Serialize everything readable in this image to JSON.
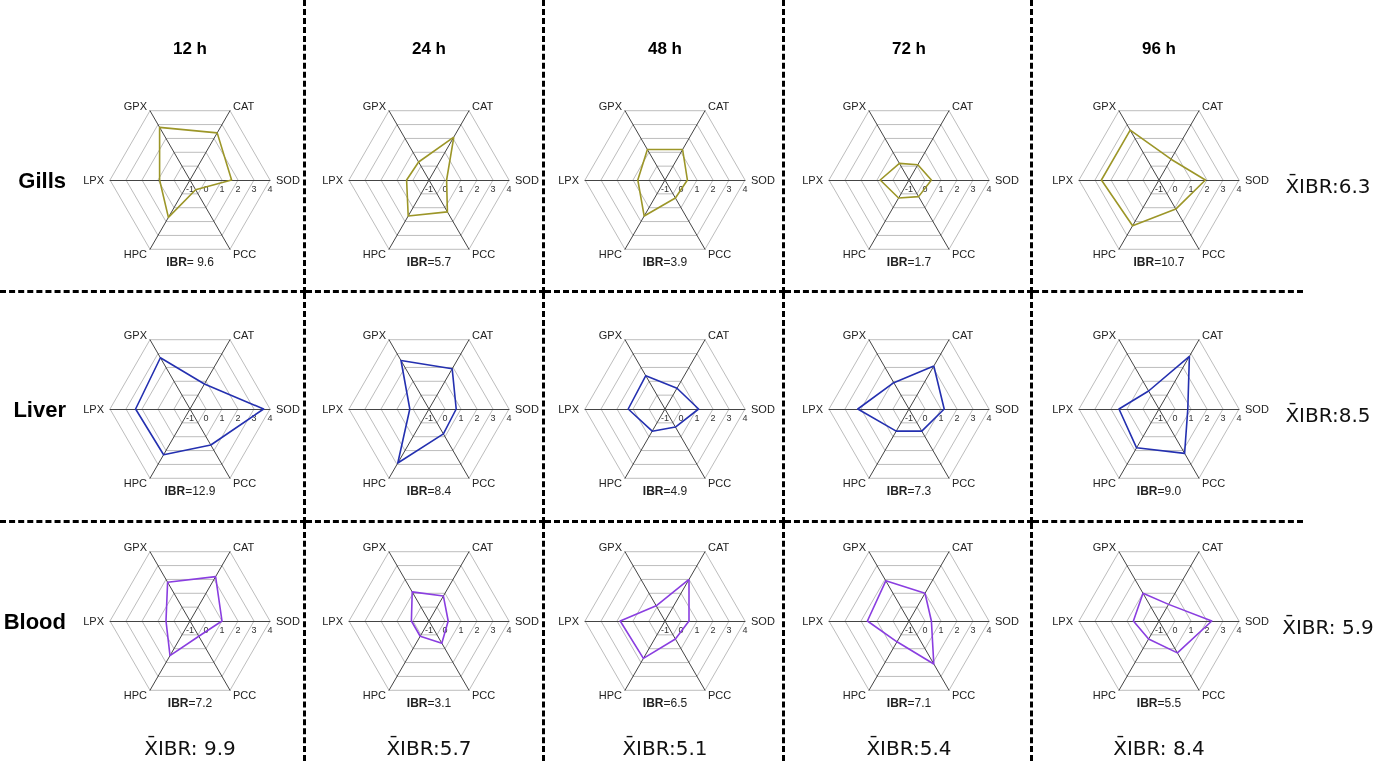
{
  "chart_data": [
    {
      "type": "radar",
      "title": "12 h",
      "ylabel": "Gills",
      "categories": [
        "CAT",
        "SOD",
        "PCC",
        "HPC",
        "LPX",
        "GPX"
      ],
      "series": [
        {
          "color": "#9c9628",
          "values": [
            2.4,
            1.6,
            -0.3,
            1.7,
            0.9,
            2.8
          ]
        }
      ],
      "ylim": [
        -1,
        4
      ],
      "yticks": [
        -1,
        0,
        1,
        2,
        3,
        4
      ],
      "grid": true,
      "annotations": [
        "IBR= 9.6"
      ]
    },
    {
      "type": "radar",
      "title": "24 h",
      "categories": [
        "CAT",
        "SOD",
        "PCC",
        "HPC",
        "LPX",
        "GPX"
      ],
      "series": [
        {
          "color": "#9c9628",
          "values": [
            2.1,
            0.1,
            1.3,
            1.6,
            0.4,
            0.3
          ]
        }
      ],
      "ylim": [
        -1,
        4
      ],
      "yticks": [
        -1,
        0,
        1,
        2,
        3,
        4
      ],
      "grid": true,
      "annotations": [
        "IBR=5.7"
      ]
    },
    {
      "type": "radar",
      "title": "48 h",
      "categories": [
        "CAT",
        "SOD",
        "PCC",
        "HPC",
        "LPX",
        "GPX"
      ],
      "series": [
        {
          "color": "#9c9628",
          "values": [
            1.2,
            0.4,
            0.3,
            1.6,
            0.7,
            1.2
          ]
        }
      ],
      "ylim": [
        -1,
        4
      ],
      "yticks": [
        -1,
        0,
        1,
        2,
        3,
        4
      ],
      "grid": true,
      "annotations": [
        "IBR=3.9"
      ]
    },
    {
      "type": "radar",
      "title": "72 h",
      "categories": [
        "CAT",
        "SOD",
        "PCC",
        "HPC",
        "LPX",
        "GPX"
      ],
      "series": [
        {
          "color": "#9c9628",
          "values": [
            0.1,
            0.4,
            0.2,
            0.3,
            0.8,
            0.2
          ]
        }
      ],
      "ylim": [
        -1,
        4
      ],
      "yticks": [
        -1,
        0,
        1,
        2,
        3,
        4
      ],
      "grid": true,
      "annotations": [
        "IBR=1.7"
      ]
    },
    {
      "type": "radar",
      "title": "96 h",
      "categories": [
        "CAT",
        "SOD",
        "PCC",
        "HPC",
        "LPX",
        "GPX"
      ],
      "series": [
        {
          "color": "#9c9628",
          "values": [
            0.5,
            1.9,
            1.1,
            2.3,
            2.6,
            2.6
          ]
        }
      ],
      "ylim": [
        -1,
        4
      ],
      "yticks": [
        -1,
        0,
        1,
        2,
        3,
        4
      ],
      "grid": true,
      "annotations": [
        "IBR=10.7",
        "X̄IBR:6.3"
      ]
    },
    {
      "type": "radar",
      "ylabel": "Liver",
      "categories": [
        "CAT",
        "SOD",
        "PCC",
        "HPC",
        "LPX",
        "GPX"
      ],
      "series": [
        {
          "color": "#2430b0",
          "values": [
            0.8,
            3.6,
            1.6,
            2.3,
            2.4,
            2.7
          ]
        }
      ],
      "ylim": [
        -1,
        4
      ],
      "yticks": [
        -1,
        0,
        1,
        2,
        3,
        4
      ],
      "grid": true,
      "annotations": [
        "IBR=12.9"
      ]
    },
    {
      "type": "radar",
      "categories": [
        "CAT",
        "SOD",
        "PCC",
        "HPC",
        "LPX",
        "GPX"
      ],
      "series": [
        {
          "color": "#2430b0",
          "values": [
            1.9,
            0.7,
            0.8,
            2.9,
            0.2,
            2.5
          ]
        }
      ],
      "ylim": [
        -1,
        4
      ],
      "yticks": [
        -1,
        0,
        1,
        2,
        3,
        4
      ],
      "grid": true,
      "annotations": [
        "IBR=8.4"
      ]
    },
    {
      "type": "radar",
      "categories": [
        "CAT",
        "SOD",
        "PCC",
        "HPC",
        "LPX",
        "GPX"
      ],
      "series": [
        {
          "color": "#2430b0",
          "values": [
            0.5,
            1.1,
            0.3,
            0.6,
            1.3,
            1.4
          ]
        }
      ],
      "ylim": [
        -1,
        4
      ],
      "yticks": [
        -1,
        0,
        1,
        2,
        3,
        4
      ],
      "grid": true,
      "annotations": [
        "IBR=4.9"
      ]
    },
    {
      "type": "radar",
      "categories": [
        "CAT",
        "SOD",
        "PCC",
        "HPC",
        "LPX",
        "GPX"
      ],
      "series": [
        {
          "color": "#2430b0",
          "values": [
            2.1,
            1.2,
            0.6,
            0.6,
            2.2,
            0.9
          ]
        }
      ],
      "ylim": [
        -1,
        4
      ],
      "yticks": [
        -1,
        0,
        1,
        2,
        3,
        4
      ],
      "grid": true,
      "annotations": [
        "IBR=7.3"
      ]
    },
    {
      "type": "radar",
      "categories": [
        "CAT",
        "SOD",
        "PCC",
        "HPC",
        "LPX",
        "GPX"
      ],
      "series": [
        {
          "color": "#2430b0",
          "values": [
            2.8,
            0.8,
            2.2,
            1.8,
            1.5,
            0.3
          ]
        }
      ],
      "ylim": [
        -1,
        4
      ],
      "yticks": [
        -1,
        0,
        1,
        2,
        3,
        4
      ],
      "grid": true,
      "annotations": [
        "IBR=9.0",
        "X̄IBR:8.5"
      ]
    },
    {
      "type": "radar",
      "ylabel": "Blood",
      "categories": [
        "CAT",
        "SOD",
        "PCC",
        "HPC",
        "LPX",
        "GPX"
      ],
      "series": [
        {
          "color": "#8a3ee0",
          "values": [
            2.2,
            1.0,
            0.1,
            1.5,
            0.5,
            1.8
          ]
        }
      ],
      "ylim": [
        -1,
        4
      ],
      "yticks": [
        -1,
        0,
        1,
        2,
        3,
        4
      ],
      "grid": true,
      "annotations": [
        "IBR=7.2",
        "X̄IBR: 9.9"
      ]
    },
    {
      "type": "radar",
      "categories": [
        "CAT",
        "SOD",
        "PCC",
        "HPC",
        "LPX",
        "GPX"
      ],
      "series": [
        {
          "color": "#8a3ee0",
          "values": [
            0.8,
            0.2,
            0.6,
            0.1,
            0.1,
            1.1
          ]
        }
      ],
      "ylim": [
        -1,
        4
      ],
      "yticks": [
        -1,
        0,
        1,
        2,
        3,
        4
      ],
      "grid": true,
      "annotations": [
        "IBR=3.1",
        "X̄IBR:5.7"
      ]
    },
    {
      "type": "radar",
      "categories": [
        "CAT",
        "SOD",
        "PCC",
        "HPC",
        "LPX",
        "GPX"
      ],
      "series": [
        {
          "color": "#8a3ee0",
          "values": [
            2.0,
            0.5,
            0.3,
            1.7,
            1.8,
            0.1
          ]
        }
      ],
      "ylim": [
        -1,
        4
      ],
      "yticks": [
        -1,
        0,
        1,
        2,
        3,
        4
      ],
      "grid": true,
      "annotations": [
        "IBR=6.5",
        "X̄IBR:5.1"
      ]
    },
    {
      "type": "radar",
      "categories": [
        "CAT",
        "SOD",
        "PCC",
        "HPC",
        "LPX",
        "GPX"
      ],
      "series": [
        {
          "color": "#8a3ee0",
          "values": [
            1.0,
            0.4,
            2.1,
            0.5,
            1.6,
            1.9
          ]
        }
      ],
      "ylim": [
        -1,
        4
      ],
      "yticks": [
        -1,
        0,
        1,
        2,
        3,
        4
      ],
      "grid": true,
      "annotations": [
        "IBR=7.1",
        "X̄IBR:5.4"
      ]
    },
    {
      "type": "radar",
      "categories": [
        "CAT",
        "SOD",
        "PCC",
        "HPC",
        "LPX",
        "GPX"
      ],
      "series": [
        {
          "color": "#8a3ee0",
          "values": [
            0.2,
            2.3,
            1.3,
            0.3,
            0.6,
            1.0
          ]
        }
      ],
      "ylim": [
        -1,
        4
      ],
      "yticks": [
        -1,
        0,
        1,
        2,
        3,
        4
      ],
      "grid": true,
      "annotations": [
        "IBR=5.5",
        "X̄IBR: 8.4",
        "X̄IBR: 5.9"
      ]
    }
  ]
}
